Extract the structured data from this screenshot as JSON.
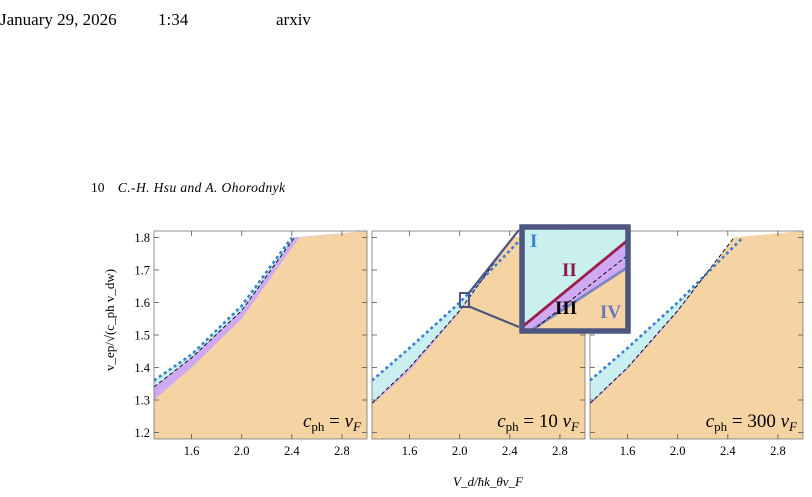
{
  "header": {
    "date": "January 29, 2026",
    "time": "1:34",
    "source": "arxiv"
  },
  "running_head": {
    "page": "10",
    "authors": "C.-H. Hsu and A. Ohorodnyk"
  },
  "colors": {
    "region_orange": "#f6d3a3",
    "region_cyan": "#c9efef",
    "region_purple": "#cfaaf2",
    "dotted_blue": "#3a7fd0",
    "inset_frame": "#4c5680",
    "line_II": "#9b1d4a",
    "line_IV": "#7a86c0",
    "label_I": "#3a7fd0",
    "label_II": "#8a1840",
    "label_III": "#000000",
    "label_IV": "#6a7ab8"
  },
  "chart_data": {
    "type": "area",
    "xlabel": "V_d/ħk_θv_F",
    "ylabel": "v_ep/√(c_ph v_dw)",
    "xlim": [
      1.3,
      3.0
    ],
    "ylim": [
      1.18,
      1.82
    ],
    "y_ticks": [
      "1.2",
      "1.3",
      "1.4",
      "1.5",
      "1.6",
      "1.7",
      "1.8"
    ],
    "x_ticks": [
      "1.6",
      "2.0",
      "2.4",
      "2.8"
    ],
    "panels": [
      {
        "label": "c_ph = v_F",
        "label_parts": {
          "sym": "c",
          "sub": "ph",
          "eq": " = ",
          "coef": "",
          "var": "v",
          "vsub": "F"
        },
        "dotted_boundary": [
          [
            1.3,
            1.36
          ],
          [
            1.6,
            1.44
          ],
          [
            2.0,
            1.59
          ],
          [
            2.4,
            1.8
          ]
        ],
        "dashed_boundary": [
          [
            1.3,
            1.34
          ],
          [
            1.6,
            1.43
          ],
          [
            2.0,
            1.575
          ],
          [
            2.42,
            1.8
          ]
        ],
        "orange_boundary": [
          [
            1.3,
            1.3
          ],
          [
            1.6,
            1.4
          ],
          [
            2.0,
            1.55
          ],
          [
            2.46,
            1.8
          ]
        ]
      },
      {
        "label": "c_ph = 10 v_F",
        "label_parts": {
          "sym": "c",
          "sub": "ph",
          "eq": " = ",
          "coef": "10 ",
          "var": "v",
          "vsub": "F"
        },
        "dotted_boundary": [
          [
            1.3,
            1.36
          ],
          [
            1.6,
            1.46
          ],
          [
            2.0,
            1.6
          ],
          [
            2.5,
            1.8
          ]
        ],
        "dashed_boundary": [
          [
            1.3,
            1.29
          ],
          [
            1.6,
            1.4
          ],
          [
            2.0,
            1.575
          ],
          [
            2.42,
            1.8
          ]
        ],
        "orange_boundary": [
          [
            1.3,
            1.285
          ],
          [
            1.6,
            1.39
          ],
          [
            2.0,
            1.57
          ],
          [
            2.43,
            1.8
          ]
        ],
        "inset_labels": [
          "I",
          "II",
          "III",
          "IV"
        ]
      },
      {
        "label": "c_ph = 300 v_F",
        "label_parts": {
          "sym": "c",
          "sub": "ph",
          "eq": " = ",
          "coef": "300 ",
          "var": "v",
          "vsub": "F"
        },
        "dotted_boundary": [
          [
            1.3,
            1.36
          ],
          [
            1.6,
            1.46
          ],
          [
            2.0,
            1.6
          ],
          [
            2.52,
            1.8
          ]
        ],
        "dashed_boundary": [
          [
            1.3,
            1.29
          ],
          [
            1.6,
            1.4
          ],
          [
            2.0,
            1.575
          ],
          [
            2.45,
            1.8
          ]
        ],
        "orange_boundary": [
          [
            1.3,
            1.285
          ],
          [
            1.6,
            1.395
          ],
          [
            2.0,
            1.57
          ],
          [
            2.45,
            1.8
          ]
        ]
      }
    ]
  }
}
